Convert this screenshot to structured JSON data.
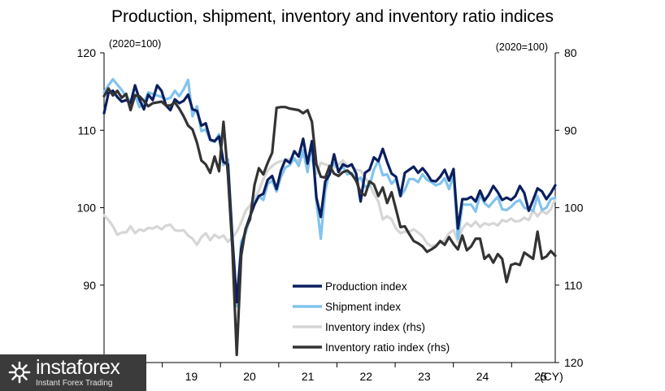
{
  "chart_data": {
    "type": "line",
    "title": "Production, shipment, inventory and inventory ratio indices",
    "left_axis": {
      "unit_label": "(2020=100)",
      "ylim": [
        80,
        120
      ],
      "ticks": [
        80,
        90,
        100,
        110,
        120
      ]
    },
    "right_axis": {
      "unit_label": "(2020=100)",
      "ylim": [
        120,
        80
      ],
      "inverted": true,
      "ticks": [
        80,
        90,
        100,
        110,
        120
      ]
    },
    "x_axis": {
      "start": 2018.0,
      "end": 2025.75,
      "tick_labels": [
        "19",
        "20",
        "21",
        "22",
        "23",
        "24",
        "25"
      ],
      "tick_positions": [
        2019,
        2020,
        2021,
        2022,
        2023,
        2024,
        2025
      ],
      "suffix": "(CY)"
    },
    "legend_position": "bottom-center",
    "series": [
      {
        "name": "Production index",
        "axis": "left",
        "color": "#0b1f5e",
        "width": 3.2,
        "values": [
          112.2,
          114.8,
          115.1,
          114.3,
          113.7,
          113.9,
          113.5,
          115.8,
          114.0,
          112.7,
          114.6,
          113.9,
          115.8,
          115.1,
          113.2,
          112.6,
          114.0,
          113.5,
          113.8,
          114.6,
          112.7,
          112.5,
          110.6,
          110.9,
          108.8,
          108.6,
          109.2,
          105.9,
          105.6,
          96.0,
          87.8,
          94.7,
          97.2,
          98.9,
          100.4,
          101.5,
          101.8,
          103.6,
          104.1,
          102.4,
          104.8,
          106.2,
          105.8,
          107.3,
          106.6,
          108.9,
          105.7,
          108.6,
          101.3,
          98.8,
          103.4,
          104.3,
          106.9,
          104.6,
          105.6,
          105.3,
          105.6,
          104.4,
          100.8,
          104.5,
          104.9,
          106.5,
          106.0,
          107.6,
          105.9,
          104.4,
          104.0,
          101.5,
          104.5,
          104.9,
          105.3,
          104.5,
          105.1,
          104.4,
          103.5,
          103.4,
          104.0,
          104.9,
          103.5,
          105.0,
          97.3,
          101.1,
          101.1,
          101.4,
          100.8,
          102.2,
          100.9,
          101.7,
          102.8,
          102.0,
          101.0,
          101.3,
          101.0,
          101.5,
          102.8,
          101.9,
          99.6,
          101.0,
          102.5,
          102.1,
          101.1,
          101.9,
          102.9
        ]
      },
      {
        "name": "Shipment index",
        "axis": "left",
        "color": "#82c3ee",
        "width": 3.2,
        "values": [
          114.9,
          115.8,
          116.6,
          115.9,
          115.2,
          114.3,
          113.8,
          114.6,
          113.0,
          113.5,
          114.9,
          114.7,
          114.5,
          114.3,
          114.0,
          114.2,
          115.1,
          114.4,
          115.3,
          116.5,
          111.8,
          113.1,
          109.9,
          110.1,
          108.7,
          108.5,
          109.5,
          105.5,
          106.2,
          96.5,
          87.3,
          95.6,
          96.7,
          98.8,
          100.7,
          101.5,
          101.0,
          103.1,
          103.5,
          102.1,
          104.0,
          105.2,
          105.5,
          106.4,
          105.4,
          107.4,
          104.6,
          108.6,
          100.9,
          96.0,
          102.2,
          104.7,
          105.8,
          104.9,
          105.3,
          104.3,
          104.5,
          103.4,
          103.9,
          102.7,
          102.8,
          104.9,
          106.1,
          104.2,
          104.3,
          103.1,
          103.7,
          101.5,
          102.3,
          103.7,
          103.7,
          103.3,
          104.3,
          103.6,
          103.3,
          102.9,
          103.1,
          103.8,
          102.4,
          104.2,
          96.0,
          100.4,
          100.4,
          100.4,
          99.5,
          101.7,
          100.6,
          100.1,
          100.8,
          101.4,
          99.8,
          99.7,
          100.1,
          100.7,
          101.0,
          100.0,
          99.8,
          99.6,
          101.5,
          99.7,
          100.0,
          101.1,
          101.3
        ]
      },
      {
        "name": "Inventory index (rhs)",
        "axis": "right",
        "color": "#d6d6d6",
        "width": 3.2,
        "values": [
          101.0,
          101.6,
          102.4,
          103.5,
          103.2,
          103.2,
          102.4,
          103.3,
          102.8,
          103.0,
          102.6,
          102.7,
          102.4,
          102.8,
          102.3,
          102.2,
          102.9,
          103.0,
          102.9,
          103.6,
          104.0,
          104.8,
          103.8,
          103.3,
          104.2,
          103.5,
          103.9,
          103.6,
          104.4,
          103.9,
          103.1,
          101.9,
          100.4,
          99.7,
          98.8,
          97.8,
          96.3,
          95.2,
          94.6,
          94.2,
          94.0,
          93.9,
          93.7,
          93.9,
          93.9,
          93.3,
          93.6,
          93.9,
          95.6,
          94.2,
          94.4,
          94.6,
          94.8,
          94.4,
          93.9,
          94.6,
          94.7,
          95.1,
          95.2,
          96.1,
          96.9,
          98.2,
          99.2,
          101.5,
          101.1,
          101.5,
          102.7,
          103.3,
          103.1,
          103.1,
          102.8,
          103.2,
          103.7,
          104.6,
          105.0,
          104.8,
          104.6,
          104.2,
          103.3,
          102.9,
          104.4,
          102.7,
          102.0,
          102.4,
          101.8,
          102.5,
          102.0,
          102.2,
          102.0,
          102.3,
          101.6,
          101.8,
          101.4,
          101.8,
          101.7,
          101.3,
          101.6,
          100.4,
          101.1,
          100.4,
          100.8,
          100.2,
          98.9
        ]
      },
      {
        "name": "Inventory ratio index (rhs)",
        "axis": "right",
        "color": "#333333",
        "width": 3.2,
        "values": [
          85.6,
          84.6,
          85.5,
          84.9,
          85.8,
          85.3,
          87.4,
          85.5,
          85.6,
          86.2,
          86.9,
          86.5,
          86.4,
          86.3,
          86.8,
          86.8,
          86.4,
          87.2,
          88.2,
          89.4,
          89.9,
          91.6,
          93.9,
          94.4,
          95.5,
          93.4,
          95.3,
          88.9,
          95.8,
          105.2,
          119.0,
          106.2,
          102.7,
          101.5,
          97.1,
          94.9,
          95.7,
          94.2,
          92.9,
          87.1,
          87.0,
          87.0,
          87.2,
          87.3,
          87.4,
          87.8,
          87.4,
          88.9,
          94.4,
          96.0,
          96.1,
          94.6,
          95.6,
          95.9,
          95.4,
          95.2,
          95.7,
          96.5,
          98.1,
          98.4,
          96.6,
          97.0,
          98.5,
          97.4,
          99.4,
          98.0,
          100.2,
          102.5,
          102.4,
          103.4,
          104.3,
          104.6,
          105.0,
          105.7,
          105.4,
          105.0,
          104.3,
          104.8,
          103.8,
          104.7,
          105.4,
          103.6,
          105.5,
          105.0,
          104.0,
          104.0,
          106.6,
          106.1,
          107.1,
          106.0,
          106.6,
          109.6,
          107.4,
          107.2,
          107.4,
          105.8,
          106.2,
          106.6,
          103.1,
          106.6,
          106.3,
          105.6,
          106.2
        ]
      }
    ]
  },
  "watermark": {
    "name": "instaforex",
    "tagline": "Instant Forex Trading"
  }
}
